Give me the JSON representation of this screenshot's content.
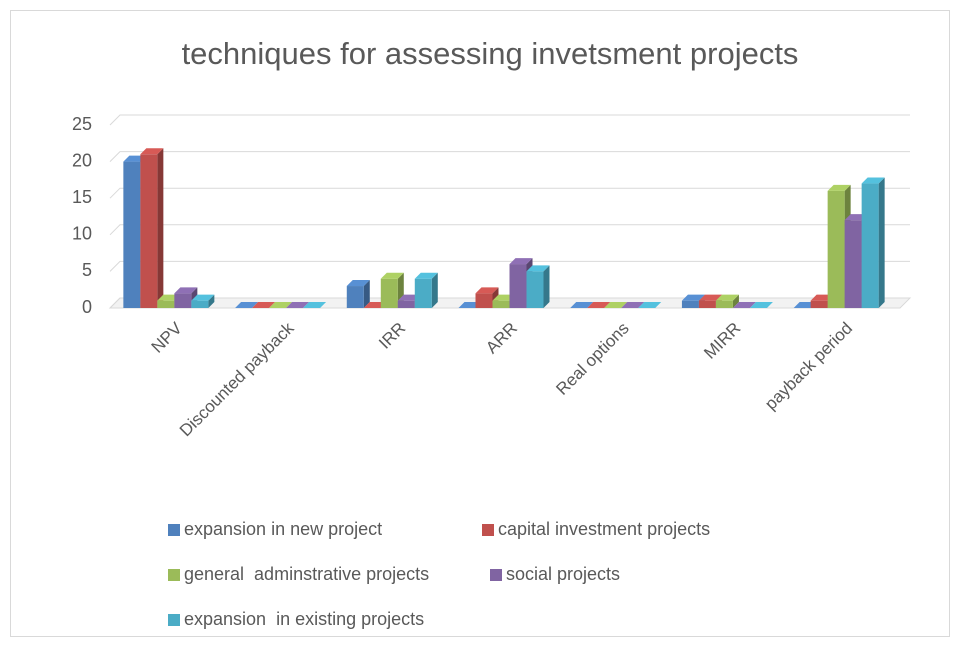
{
  "chart_data": {
    "type": "bar3d",
    "title": "techniques for assessing invetsment projects",
    "categories": [
      "NPV",
      "Discounted payback",
      "IRR",
      "ARR",
      "Real options",
      "MIRR",
      "payback period"
    ],
    "series": [
      {
        "name": "expansion in new project",
        "color": "#4f81bd",
        "values": [
          20,
          0,
          3,
          0,
          0,
          1,
          0
        ]
      },
      {
        "name": "capital investment projects",
        "color": "#c0504d",
        "values": [
          21,
          0,
          0,
          2,
          0,
          1,
          1
        ]
      },
      {
        "name": "general  adminstrative projects",
        "color": "#9bbb59",
        "values": [
          1,
          0,
          4,
          1,
          0,
          1,
          16
        ]
      },
      {
        "name": "social projects",
        "color": "#8064a2",
        "values": [
          2,
          0,
          1,
          6,
          0,
          0,
          12
        ]
      },
      {
        "name": "expansion  in existing projects",
        "color": "#4bacc6",
        "values": [
          1,
          0,
          4,
          5,
          0,
          0,
          17
        ]
      }
    ],
    "ylim": [
      0,
      25
    ],
    "yticks": [
      0,
      5,
      10,
      15,
      20,
      25
    ],
    "grid": true,
    "legend": "bottom"
  }
}
